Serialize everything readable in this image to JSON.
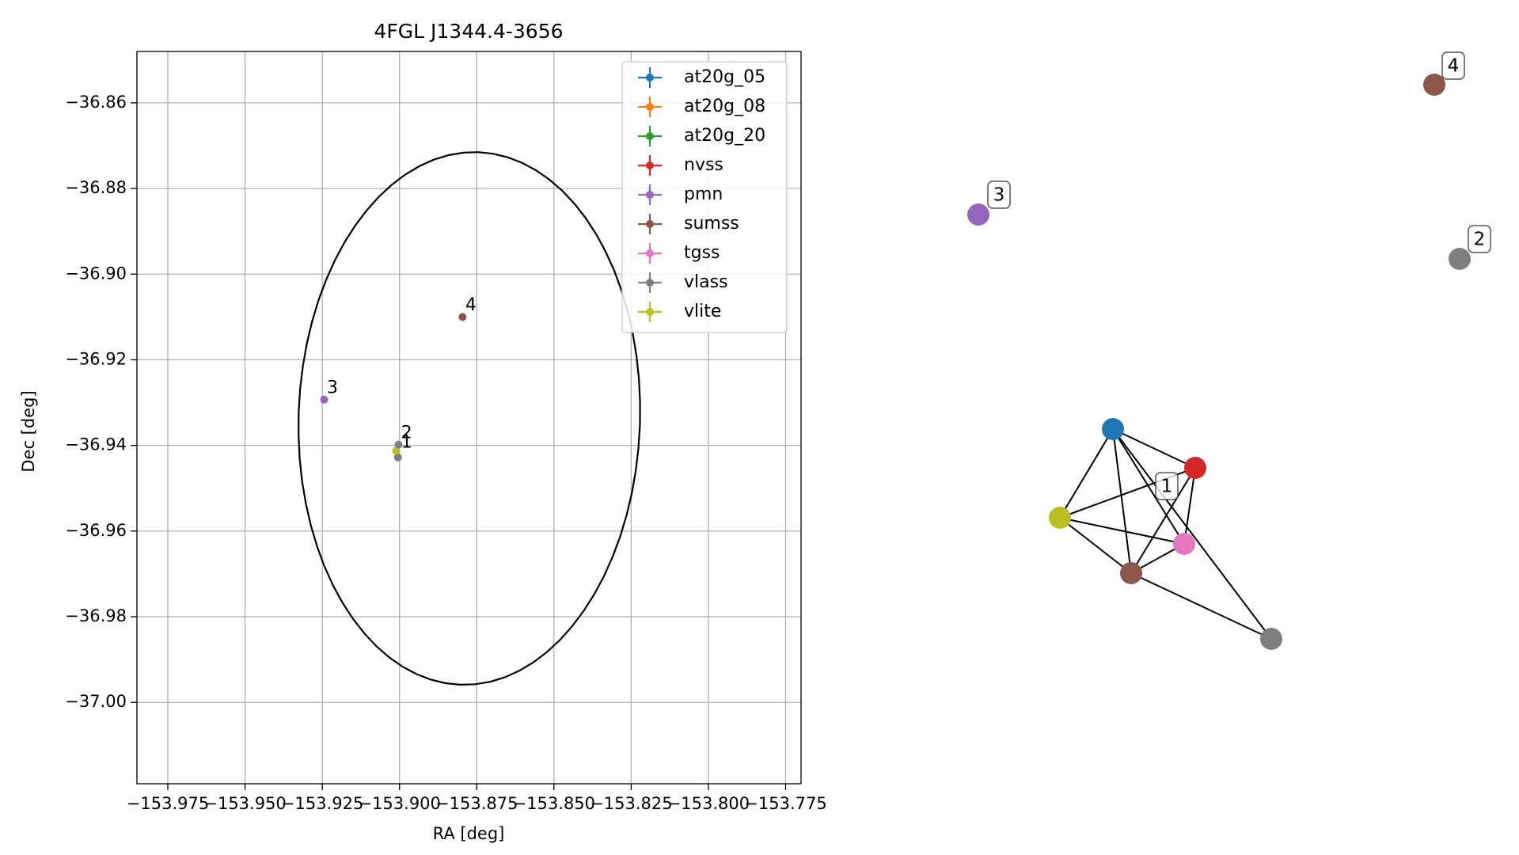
{
  "chart_data": [
    {
      "type": "scatter",
      "title": "4FGL J1344.4-3656",
      "xlabel": "RA [deg]",
      "ylabel": "Dec [deg]",
      "xlim": [
        -153.985,
        -153.77
      ],
      "ylim": [
        -37.019,
        -36.848
      ],
      "xticks": [
        -153.975,
        -153.95,
        -153.925,
        -153.9,
        -153.875,
        -153.85,
        -153.825,
        -153.8,
        -153.775
      ],
      "xtick_labels": [
        "−153.975",
        "−153.950",
        "−153.925",
        "−153.900",
        "−153.875",
        "−153.850",
        "−153.825",
        "−153.800",
        "−153.775"
      ],
      "yticks": [
        -36.86,
        -36.88,
        -36.9,
        -36.92,
        -36.94,
        -36.96,
        -36.98,
        -37.0
      ],
      "ytick_labels": [
        "−36.86",
        "−36.88",
        "−36.90",
        "−36.92",
        "−36.94",
        "−36.96",
        "−36.98",
        "−37.00"
      ],
      "grid": true,
      "legend_position": "top-right",
      "series": [
        {
          "name": "at20g_05",
          "color": "#1f77b4"
        },
        {
          "name": "at20g_08",
          "color": "#ff7f0e"
        },
        {
          "name": "at20g_20",
          "color": "#2ca02c"
        },
        {
          "name": "nvss",
          "color": "#d62728"
        },
        {
          "name": "pmn",
          "color": "#9467bd"
        },
        {
          "name": "sumss",
          "color": "#8c564b"
        },
        {
          "name": "tgss",
          "color": "#e377c2"
        },
        {
          "name": "vlass",
          "color": "#7f7f7f"
        },
        {
          "name": "vlite",
          "color": "#bcbd22"
        }
      ],
      "points": [
        {
          "series": "vlass",
          "ra": -153.9005,
          "dec": -36.9428
        },
        {
          "series": "vlite",
          "ra": -153.9011,
          "dec": -36.9412
        },
        {
          "series": "vlass",
          "ra": -153.9003,
          "dec": -36.9398
        },
        {
          "series": "pmn",
          "ra": -153.9244,
          "dec": -36.9293
        },
        {
          "series": "sumss",
          "ra": -153.8796,
          "dec": -36.91
        }
      ],
      "point_labels": [
        {
          "text": "1",
          "ra": -153.8995,
          "dec": -36.9413
        },
        {
          "text": "2",
          "ra": -153.8995,
          "dec": -36.939
        },
        {
          "text": "3",
          "ra": -153.9235,
          "dec": -36.9285
        },
        {
          "text": "4",
          "ra": -153.8787,
          "dec": -36.9092
        }
      ],
      "ellipse": {
        "center_ra": -153.8774,
        "center_dec": -36.9337,
        "semi_axis_ra": 0.0623,
        "semi_axis_dec": 0.0552,
        "angle_deg": 82.9
      }
    },
    {
      "type": "network",
      "nodes": [
        {
          "id": "at20g_05",
          "color": "#1f77b4"
        },
        {
          "id": "nvss",
          "color": "#d62728"
        },
        {
          "id": "vlite",
          "color": "#bcbd22"
        },
        {
          "id": "tgss",
          "color": "#e377c2"
        },
        {
          "id": "sumss",
          "color": "#8c564b"
        },
        {
          "id": "vlass",
          "color": "#7f7f7f"
        },
        {
          "id": "pmn_3",
          "color": "#9467bd"
        },
        {
          "id": "vlass_2",
          "color": "#7f7f7f"
        },
        {
          "id": "sumss_4",
          "color": "#8c564b"
        }
      ],
      "edges": [
        [
          "at20g_05",
          "nvss"
        ],
        [
          "at20g_05",
          "vlite"
        ],
        [
          "at20g_05",
          "tgss"
        ],
        [
          "at20g_05",
          "sumss"
        ],
        [
          "nvss",
          "vlite"
        ],
        [
          "nvss",
          "tgss"
        ],
        [
          "nvss",
          "sumss"
        ],
        [
          "vlite",
          "tgss"
        ],
        [
          "vlite",
          "sumss"
        ],
        [
          "tgss",
          "sumss"
        ],
        [
          "at20g_05",
          "vlass"
        ],
        [
          "sumss",
          "vlass"
        ]
      ],
      "group_labels": [
        "1",
        "2",
        "3",
        "4"
      ]
    }
  ]
}
